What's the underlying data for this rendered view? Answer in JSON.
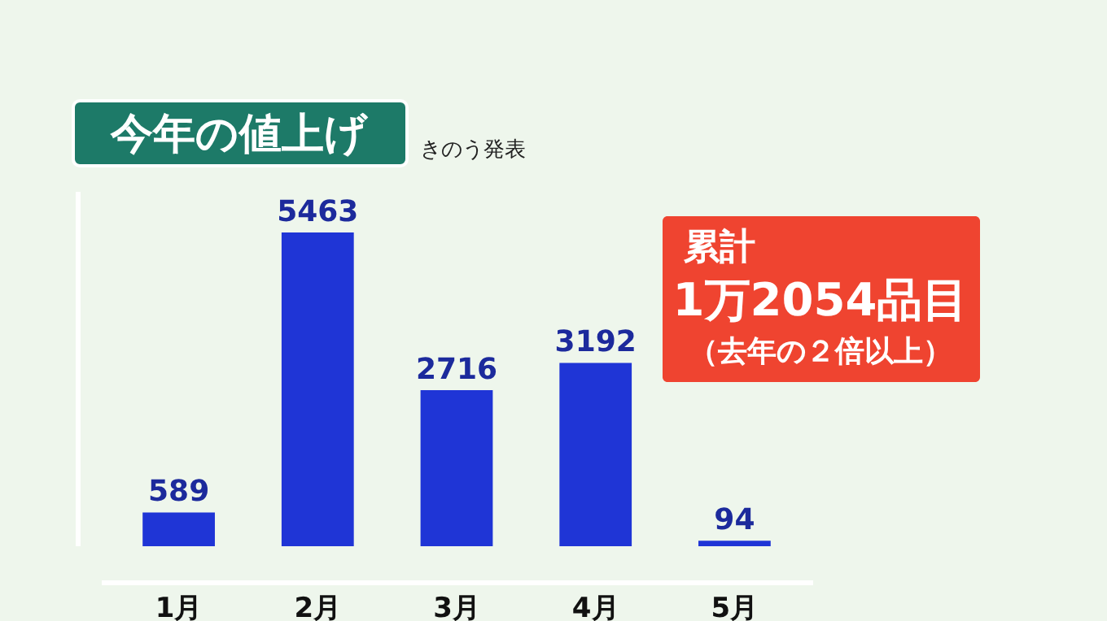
{
  "chart_data": {
    "type": "bar",
    "title": "今年の値上げ",
    "subtitle": "きのう発表",
    "categories": [
      "1月",
      "2月",
      "3月",
      "4月",
      "5月"
    ],
    "values": [
      589,
      5463,
      2716,
      3192,
      94
    ],
    "color": "#1f35d6",
    "data_labels": true,
    "grid": false,
    "annotations": [
      "累計",
      "1万2054品目",
      "（去年の２倍以上）"
    ]
  }
}
